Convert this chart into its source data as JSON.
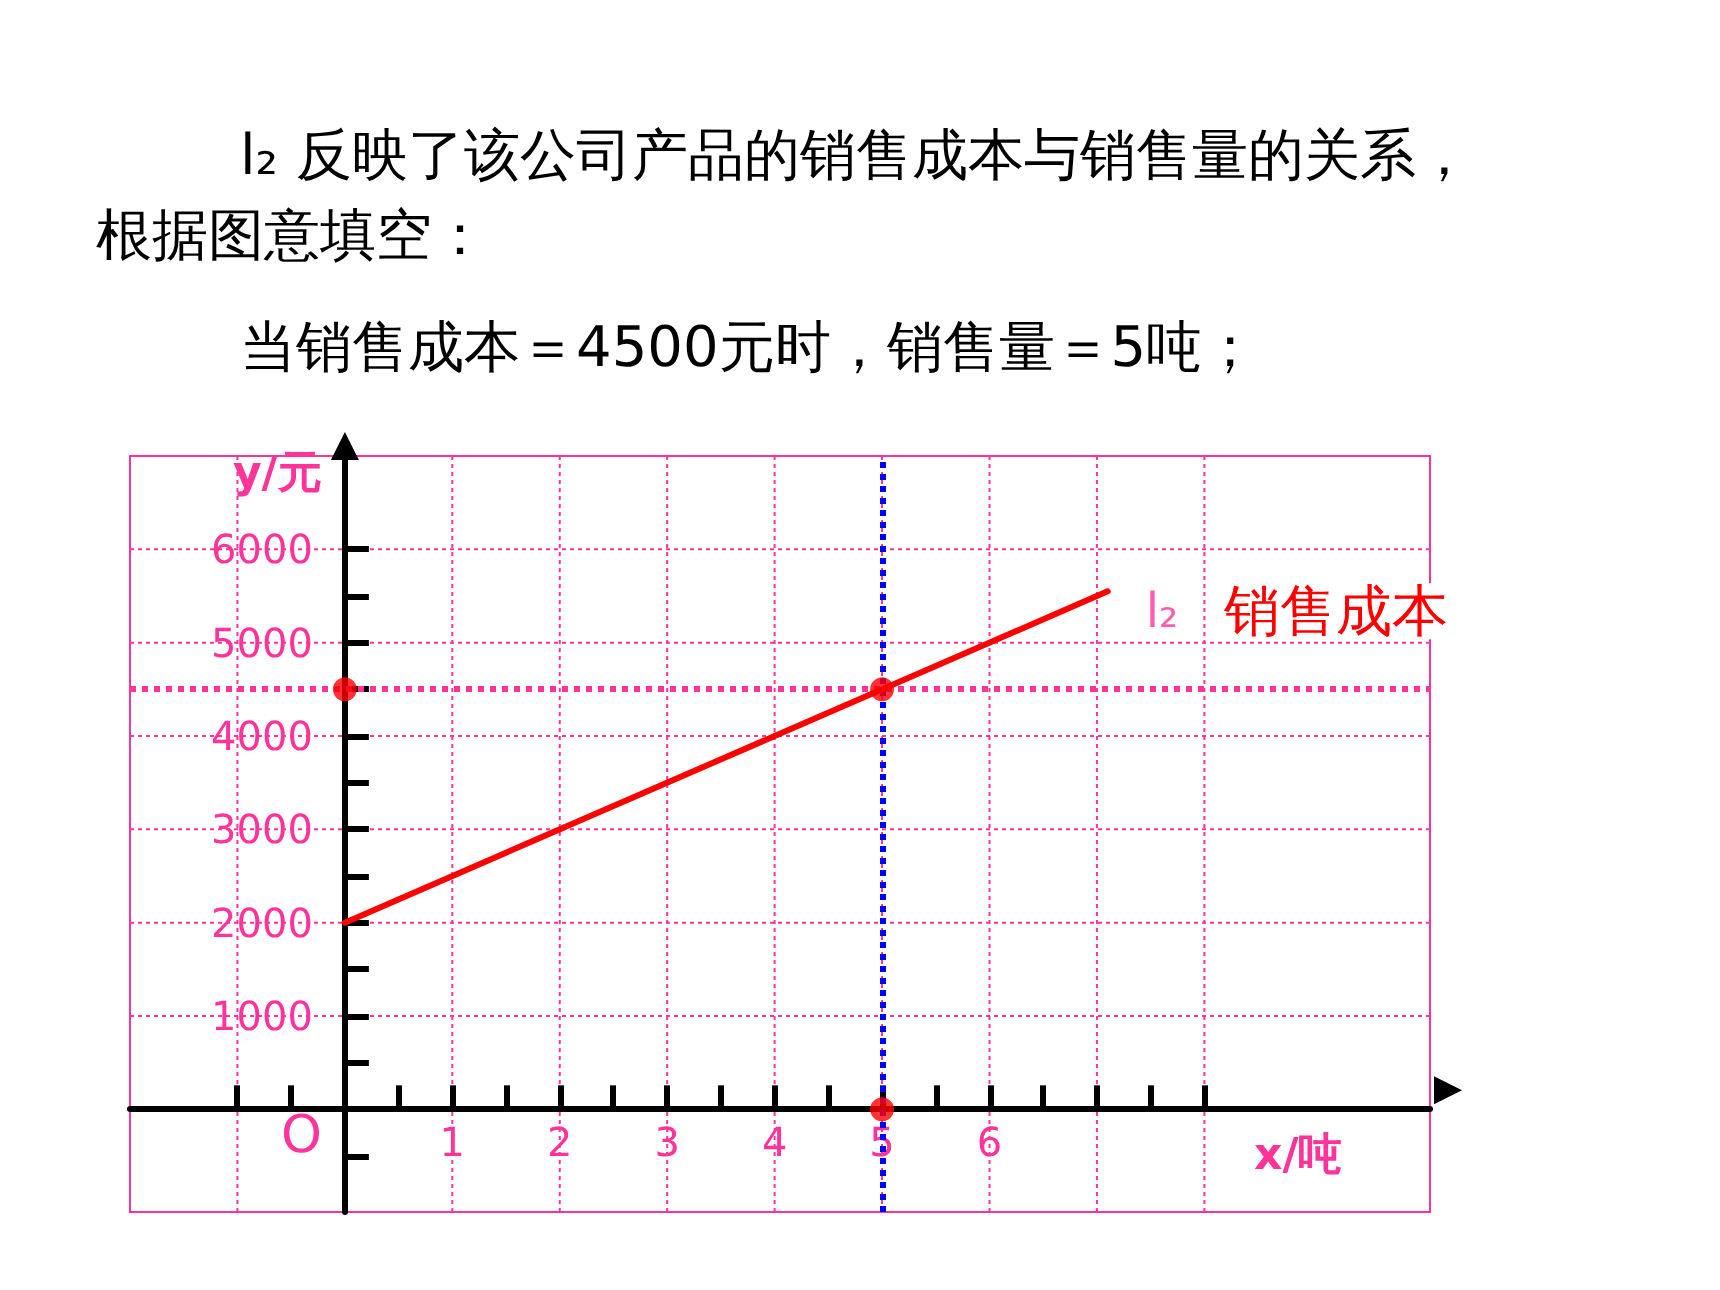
{
  "chart_data": {
    "type": "line",
    "title": "l₂ 反映了该公司产品的销售成本与销售量的关系，根据图意填空：",
    "subtitle": "当销售成本＝4500元时，销售量＝5吨；",
    "xlabel": "x/吨",
    "ylabel": "y/元",
    "xlim": [
      -2,
      10.1
    ],
    "ylim": [
      -1100,
      7000
    ],
    "xticks": [
      {
        "value": -1,
        "label": null
      },
      {
        "value": -0.5,
        "label": null
      },
      {
        "value": 0.5,
        "label": null
      },
      1,
      {
        "value": 1.5,
        "label": null
      },
      2,
      {
        "value": 2.5,
        "label": null
      },
      3,
      {
        "value": 3.5,
        "label": null
      },
      4,
      {
        "value": 4.5,
        "label": null
      },
      5,
      {
        "value": 5.5,
        "label": null
      },
      6,
      {
        "value": 6.5,
        "label": null
      },
      {
        "value": 7,
        "label": null
      },
      {
        "value": 7.5,
        "label": null
      },
      {
        "value": 8,
        "label": null
      }
    ],
    "yticks": [
      {
        "value": -500,
        "label": null
      },
      {
        "value": 500,
        "label": null
      },
      1000,
      {
        "value": 1500,
        "label": null
      },
      2000,
      {
        "value": 2500,
        "label": null
      },
      3000,
      {
        "value": 3500,
        "label": null
      },
      4000,
      {
        "value": 4500,
        "label": null
      },
      5000,
      {
        "value": 5500,
        "label": null
      },
      6000
    ],
    "series": [
      {
        "name": "销售成本",
        "type": "line",
        "color": "#ff0000",
        "x": [
          0,
          7.1
        ],
        "values": [
          2000,
          5550
        ]
      },
      {
        "type": "scatter",
        "color": "#ff0000",
        "x": [
          0,
          5,
          5
        ],
        "values": [
          4500,
          4500,
          0
        ]
      }
    ],
    "ref_lines": [
      {
        "axis": "y",
        "value": 4500,
        "color": "#ff3399",
        "line_style": "dotted"
      },
      {
        "axis": "x",
        "value": 5,
        "color": "#0000ff",
        "line_style": "dotted"
      }
    ],
    "annotations": [
      {
        "text": "l₂",
        "x": 7.1,
        "y": 5550
      },
      "O"
    ],
    "grid": true,
    "legend": false,
    "line_style": "solid"
  }
}
